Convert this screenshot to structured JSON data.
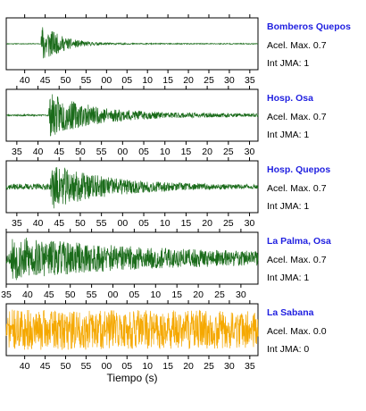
{
  "chart_data": {
    "type": "line",
    "xlabel": "Tiempo (s)",
    "panels": [
      {
        "station": "Bomberos Quepos",
        "acel_label": "Acel. Max. 0.7",
        "jma_label": "Int JMA: 1",
        "color": "#1a6b1a",
        "tick_labels": [
          "40",
          "45",
          "50",
          "55",
          "00",
          "05",
          "10",
          "15",
          "20",
          "25",
          "30",
          "35"
        ],
        "tick_positions_s": [
          40,
          45,
          50,
          55,
          60,
          65,
          70,
          75,
          80,
          85,
          90,
          95
        ],
        "x_range_s": [
          35.5,
          97
        ],
        "signal": {
          "onset_s": 44,
          "peak_amp": 0.98,
          "decay": 4.5,
          "coda": 0.02,
          "pre_noise": 0.015,
          "seed": 11
        }
      },
      {
        "station": "Hosp. Osa",
        "acel_label": "Acel. Max. 0.7",
        "jma_label": "Int JMA: 1",
        "color": "#1a6b1a",
        "tick_labels": [
          "35",
          "40",
          "45",
          "50",
          "55",
          "00",
          "05",
          "10",
          "15",
          "20",
          "25",
          "30"
        ],
        "tick_positions_s": [
          35,
          40,
          45,
          50,
          55,
          60,
          65,
          70,
          75,
          80,
          85,
          90
        ],
        "x_range_s": [
          32.5,
          92
        ],
        "signal": {
          "onset_s": 42.5,
          "peak_amp": 0.95,
          "decay": 11,
          "coda": 0.06,
          "pre_noise": 0.03,
          "seed": 23
        }
      },
      {
        "station": "Hosp. Quepos",
        "acel_label": "Acel. Max. 0.7",
        "jma_label": "Int JMA: 1",
        "color": "#1a6b1a",
        "tick_labels": [
          "35",
          "40",
          "45",
          "50",
          "55",
          "00",
          "05",
          "10",
          "15",
          "20",
          "25",
          "30"
        ],
        "tick_positions_s": [
          35,
          40,
          45,
          50,
          55,
          60,
          65,
          70,
          75,
          80,
          85,
          90
        ],
        "x_range_s": [
          32.5,
          92
        ],
        "signal": {
          "onset_s": 43,
          "peak_amp": 0.98,
          "decay": 14,
          "coda": 0.06,
          "pre_noise": 0.12,
          "seed": 37
        }
      },
      {
        "station": "La Palma, Osa",
        "acel_label": "Acel. Max. 0.7",
        "jma_label": "Int JMA: 1",
        "color": "#1a6b1a",
        "tick_labels": [
          "35",
          "40",
          "45",
          "50",
          "55",
          "00",
          "05",
          "10",
          "15",
          "20",
          "25",
          "30"
        ],
        "tick_positions_s": [
          35,
          40,
          45,
          50,
          55,
          60,
          65,
          70,
          75,
          80,
          85,
          90
        ],
        "x_range_s": [
          35,
          94
        ],
        "signal": {
          "onset_s": 36,
          "peak_amp": 0.95,
          "decay": 30,
          "coda": 0.2,
          "pre_noise": 0.25,
          "seed": 53
        }
      },
      {
        "station": "La Sabana",
        "acel_label": "Acel. Max. 0.0",
        "jma_label": "Int JMA: 0",
        "color": "#f5a800",
        "tick_labels": [
          "40",
          "45",
          "50",
          "55",
          "00",
          "05",
          "10",
          "15",
          "20",
          "25",
          "30",
          "35"
        ],
        "tick_positions_s": [
          40,
          45,
          50,
          55,
          60,
          65,
          70,
          75,
          80,
          85,
          90,
          95
        ],
        "x_range_s": [
          35.5,
          97
        ],
        "signal": {
          "onset_s": 36,
          "peak_amp": 0.85,
          "decay": 200,
          "coda": 0.6,
          "pre_noise": 0.55,
          "seed": 71
        }
      }
    ]
  }
}
